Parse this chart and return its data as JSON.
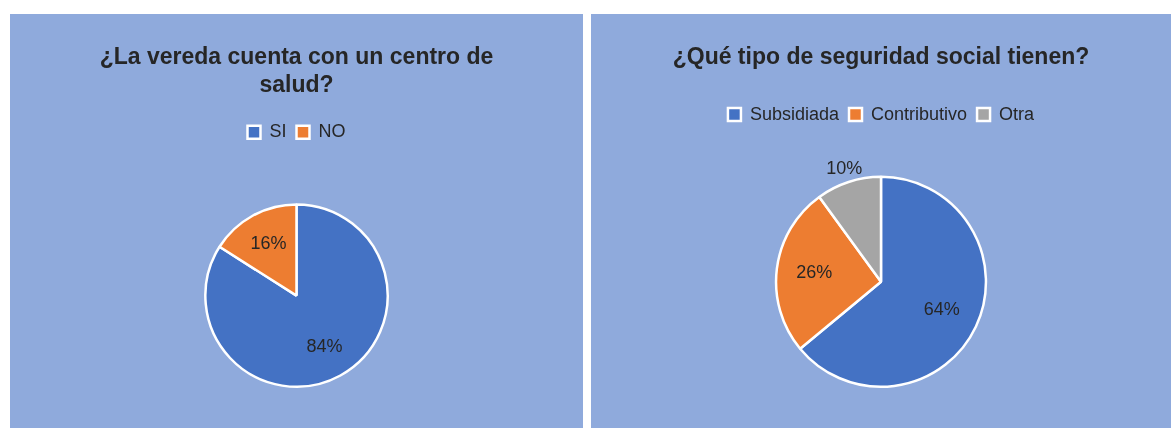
{
  "chart_data": [
    {
      "type": "pie",
      "title": "¿La vereda cuenta con un centro de salud?",
      "categories": [
        "SI",
        "NO"
      ],
      "values": [
        84,
        16
      ],
      "colors": [
        "#4472c4",
        "#ed7d31"
      ],
      "legend": "top",
      "value_labels": [
        "84%",
        "16%"
      ]
    },
    {
      "type": "pie",
      "title": "¿Qué tipo de seguridad social tienen?",
      "categories": [
        "Subsidiada",
        "Contributivo",
        "Otra"
      ],
      "values": [
        64,
        26,
        10
      ],
      "colors": [
        "#4472c4",
        "#ed7d31",
        "#a5a5a5"
      ],
      "legend": "top",
      "value_labels": [
        "64%",
        "26%",
        "10%"
      ]
    }
  ]
}
